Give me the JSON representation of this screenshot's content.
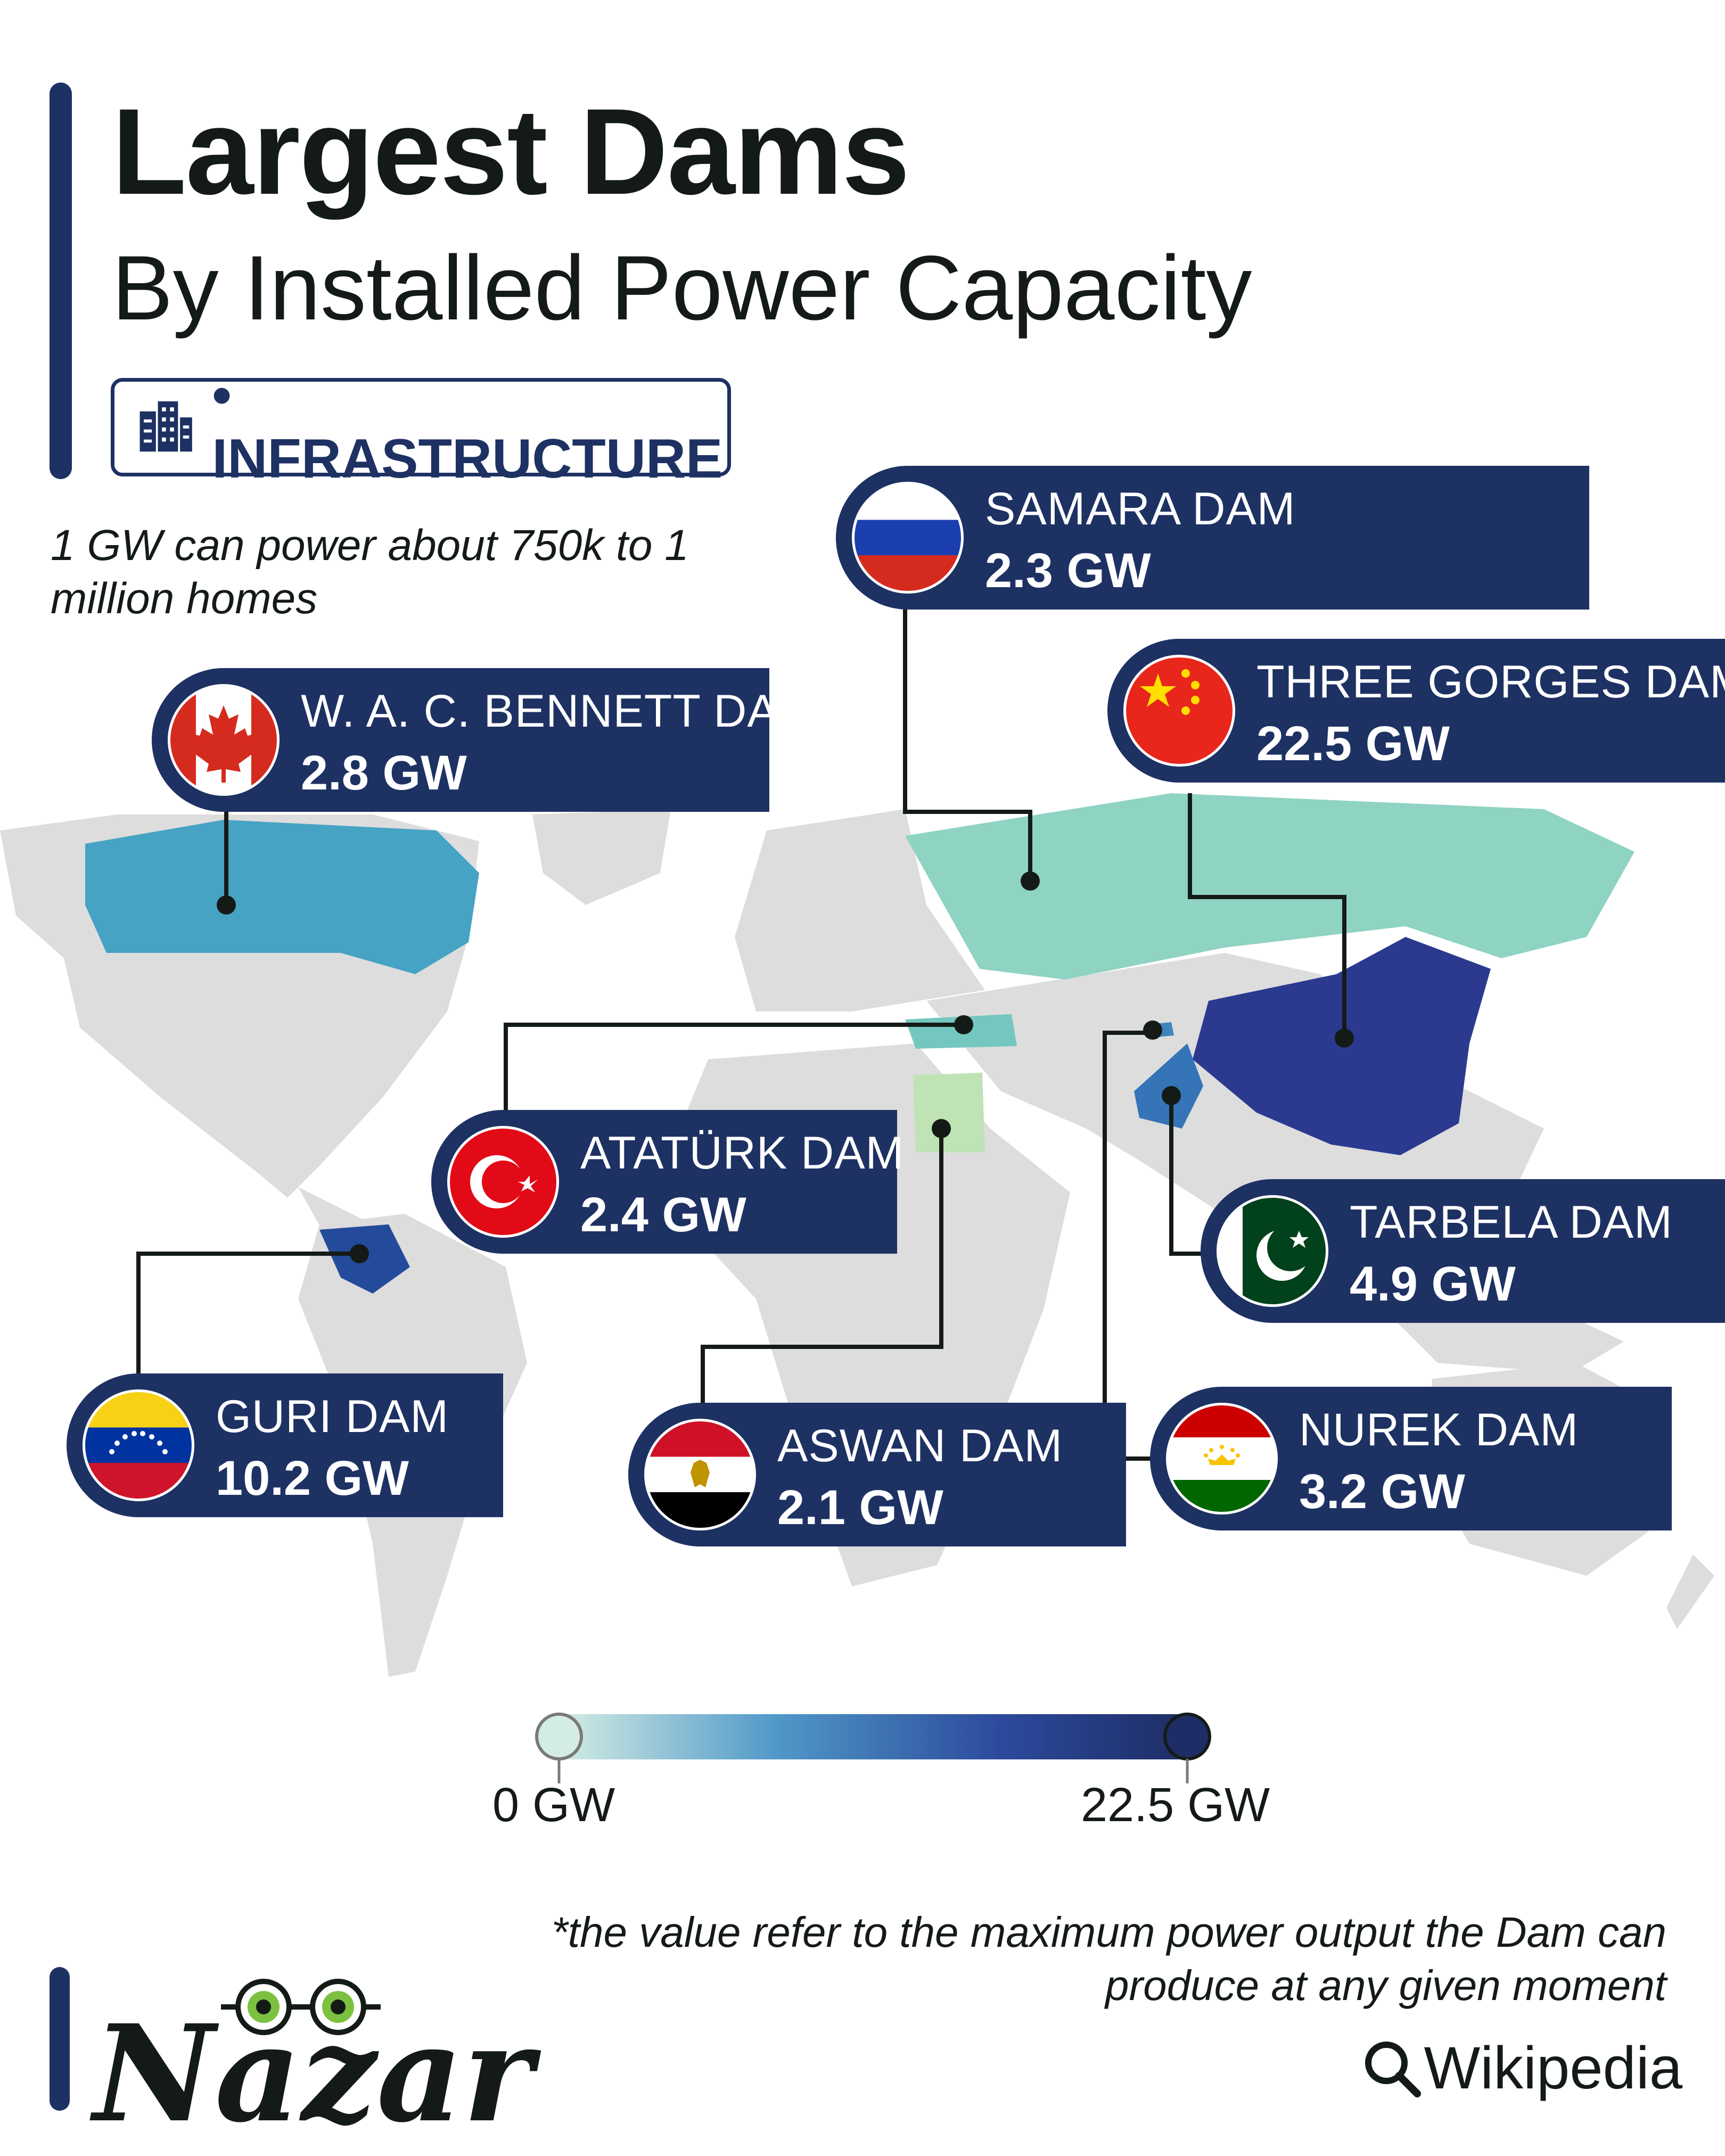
{
  "header": {
    "title": "Largest Dams",
    "subtitle": "By Installed Power Capacity",
    "category": "• INFRASTRUCTURE",
    "note": "1 GW can power about 750k to 1 million homes"
  },
  "colors": {
    "accent": "#1e3163",
    "land": "#dddddd",
    "scale_min": "#d4ede4",
    "scale_max": "#1e2d66"
  },
  "chart_data": {
    "type": "choropleth",
    "unit": "GW",
    "scale": {
      "min": 0,
      "max": 22.5
    },
    "dams": [
      {
        "name": "SAMARA DAM",
        "country": "Russia",
        "value": 2.3,
        "value_label": "2.3 GW"
      },
      {
        "name": "THREE GORGES DAM",
        "country": "China",
        "value": 22.5,
        "value_label": "22.5 GW"
      },
      {
        "name": "W. A. C. BENNETT DAM",
        "country": "Canada",
        "value": 2.8,
        "value_label": "2.8 GW"
      },
      {
        "name": "ATATÜRK DAM",
        "country": "Turkey",
        "value": 2.4,
        "value_label": "2.4 GW"
      },
      {
        "name": "TARBELA DAM",
        "country": "Pakistan",
        "value": 4.9,
        "value_label": "4.9 GW"
      },
      {
        "name": "GURI DAM",
        "country": "Venezuela",
        "value": 10.2,
        "value_label": "10.2 GW"
      },
      {
        "name": "ASWAN DAM",
        "country": "Egypt",
        "value": 2.1,
        "value_label": "2.1 GW"
      },
      {
        "name": "NUREK DAM",
        "country": "Tajikistan",
        "value": 3.2,
        "value_label": "3.2 GW"
      }
    ]
  },
  "legend": {
    "min_label": "0 GW",
    "max_label": "22.5 GW"
  },
  "footer": {
    "footnote": "*the value refer to the maximum power output the Dam can produce at any given moment",
    "brand": "Nazar",
    "source": "Wikipedia",
    "source_icon": "search-icon"
  }
}
